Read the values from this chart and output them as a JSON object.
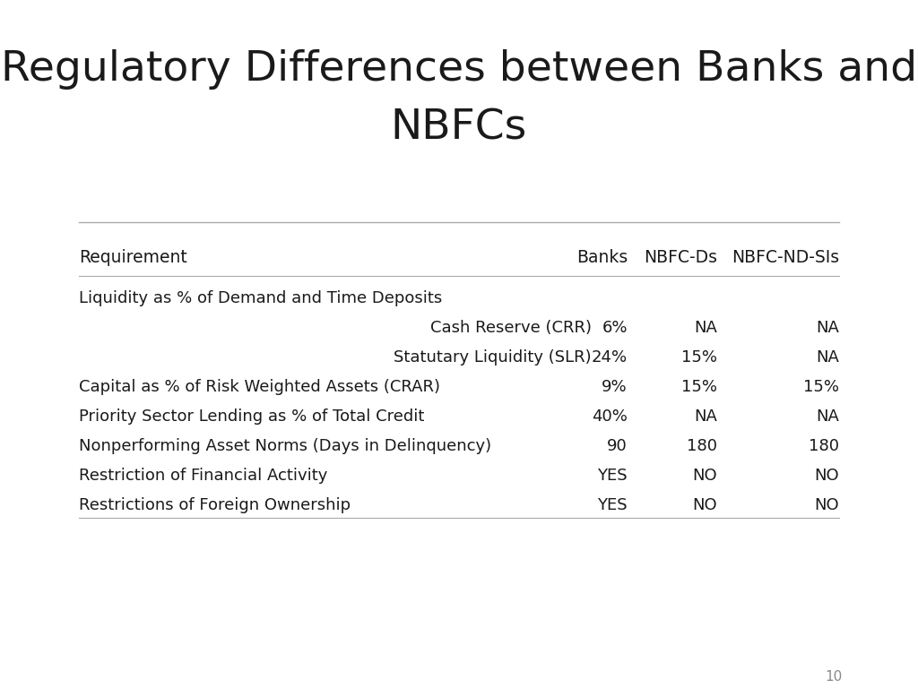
{
  "title_line1": "Regulatory Differences between Banks and",
  "title_line2": "NBFCs",
  "title_fontsize": 34,
  "title_color": "#1a1a1a",
  "background_color": "#ffffff",
  "page_number": "10",
  "columns": [
    "Requirement",
    "Banks",
    "NBFC-Ds",
    "NBFC-ND-SIs"
  ],
  "rows": [
    {
      "label": "Liquidity as % of Demand and Time Deposits",
      "indent": false,
      "banks": "",
      "nbfc_ds": "",
      "nbfc_nd": "",
      "is_group_header": true
    },
    {
      "label": "Cash Reserve (CRR)",
      "indent": true,
      "banks": "6%",
      "nbfc_ds": "NA",
      "nbfc_nd": "NA",
      "is_group_header": false
    },
    {
      "label": "Statutary Liquidity (SLR)",
      "indent": true,
      "banks": "24%",
      "nbfc_ds": "15%",
      "nbfc_nd": "NA",
      "is_group_header": false
    },
    {
      "label": "Capital as % of Risk Weighted Assets (CRAR)",
      "indent": false,
      "banks": "9%",
      "nbfc_ds": "15%",
      "nbfc_nd": "15%",
      "is_group_header": false
    },
    {
      "label": "Priority Sector Lending as % of Total Credit",
      "indent": false,
      "banks": "40%",
      "nbfc_ds": "NA",
      "nbfc_nd": "NA",
      "is_group_header": false
    },
    {
      "label": "Nonperforming Asset Norms (Days in Delinquency)",
      "indent": false,
      "banks": "90",
      "nbfc_ds": "180",
      "nbfc_nd": "180",
      "is_group_header": false
    },
    {
      "label": "Restriction of Financial Activity",
      "indent": false,
      "banks": "YES",
      "nbfc_ds": "NO",
      "nbfc_nd": "NO",
      "is_group_header": false
    },
    {
      "label": "Restrictions of Foreign Ownership",
      "indent": false,
      "banks": "YES",
      "nbfc_ds": "NO",
      "nbfc_nd": "NO",
      "is_group_header": false
    }
  ],
  "line_color": "#aaaaaa",
  "text_color": "#1a1a1a",
  "page_num_color": "#888888",
  "font_family": "DejaVu Sans",
  "col_header_fontsize": 13.5,
  "row_fontsize": 13,
  "page_num_fontsize": 11
}
